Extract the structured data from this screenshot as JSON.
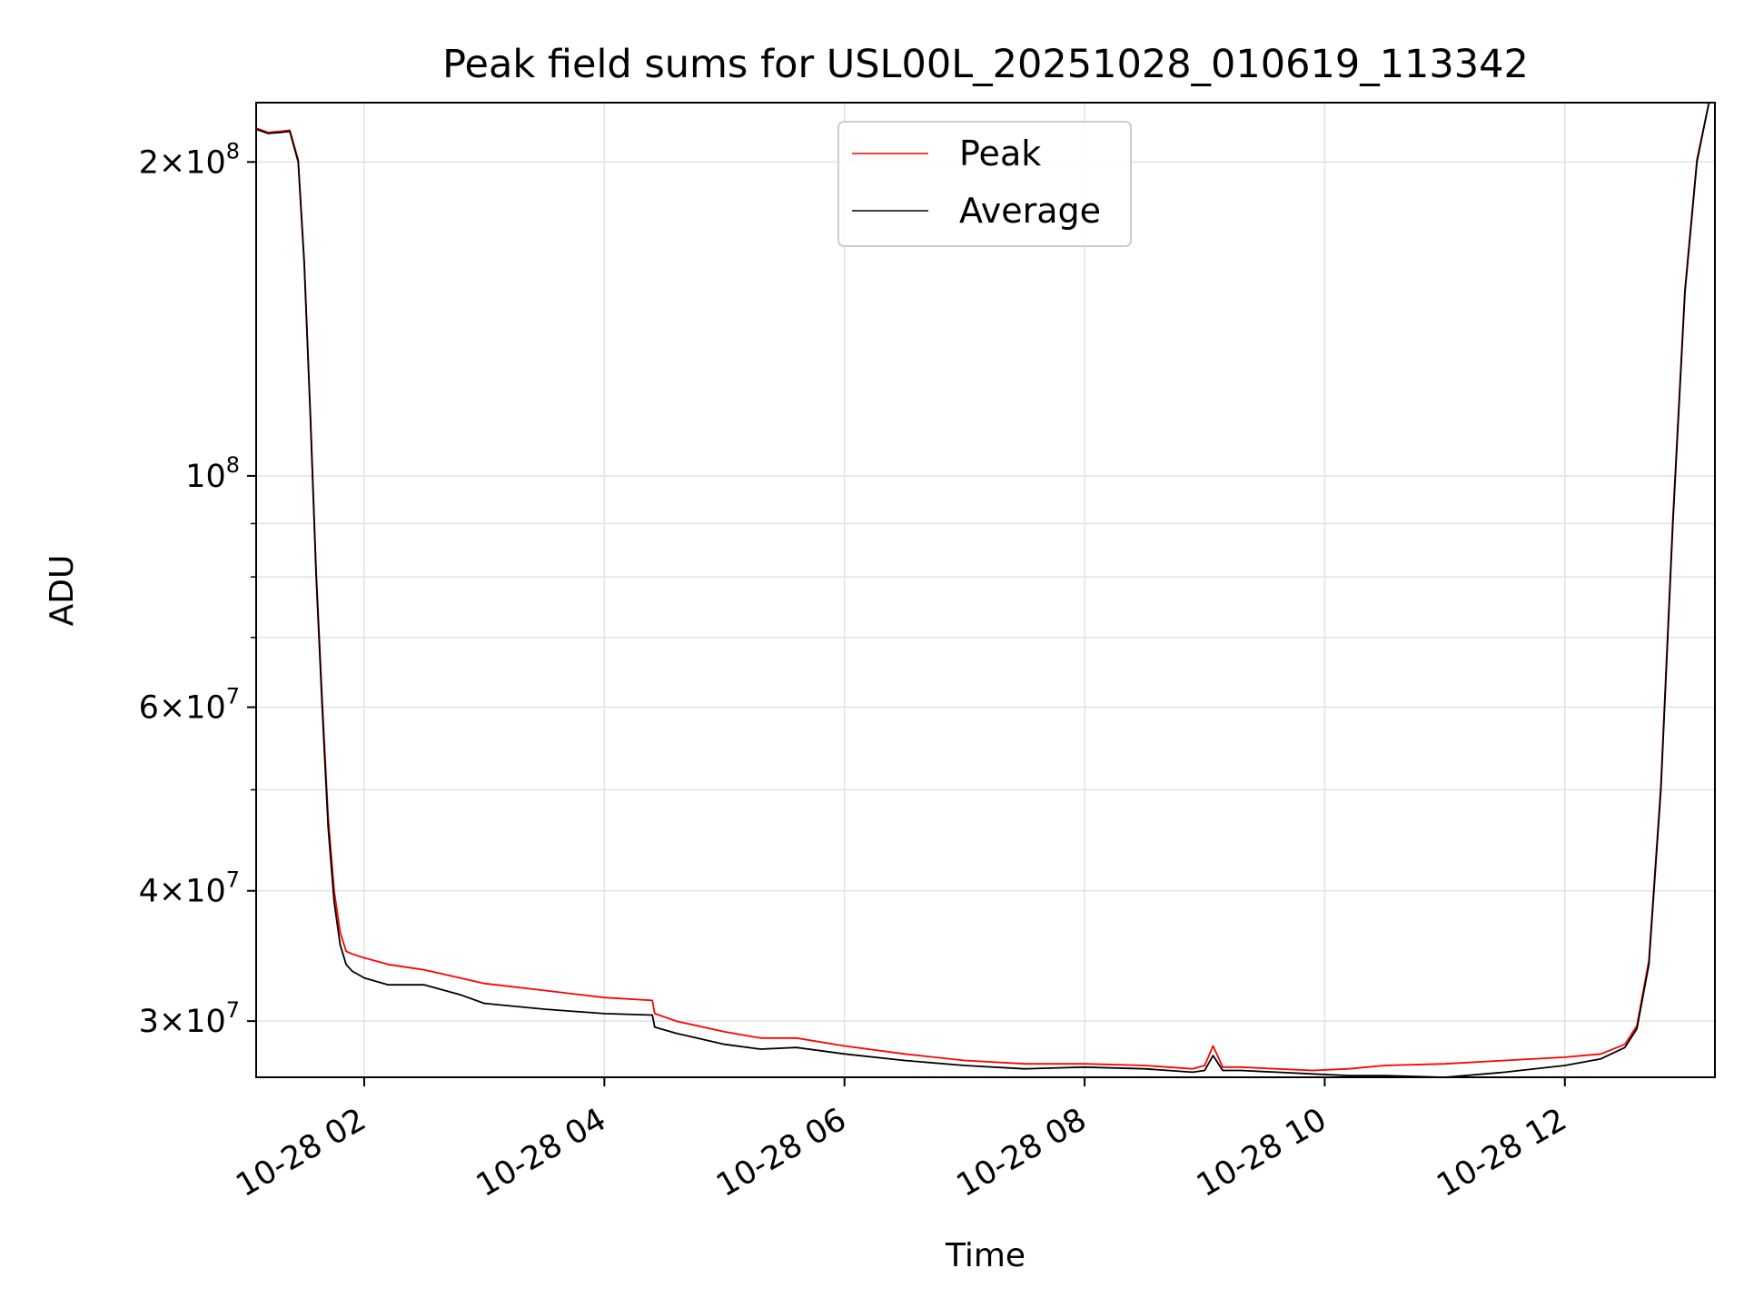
{
  "chart_data": {
    "type": "line",
    "title": "Peak field sums for USL00L_20251028_010619_113342",
    "xlabel": "Time",
    "ylabel": "ADU",
    "yscale": "log",
    "xlim": [
      1.1,
      13.25
    ],
    "ylim": [
      26500000,
      228000000
    ],
    "grid": true,
    "x_ticks": [
      {
        "value": 2,
        "label": "10-28 02"
      },
      {
        "value": 4,
        "label": "10-28 04"
      },
      {
        "value": 6,
        "label": "10-28 06"
      },
      {
        "value": 8,
        "label": "10-28 08"
      },
      {
        "value": 10,
        "label": "10-28 10"
      },
      {
        "value": 12,
        "label": "10-28 12"
      }
    ],
    "y_major_ticks": [
      {
        "value": 200000000,
        "mantissa": "2",
        "exponent": "8"
      },
      {
        "value": 100000000,
        "mantissa": "",
        "exponent": "8"
      },
      {
        "value": 60000000,
        "mantissa": "6",
        "exponent": "7"
      },
      {
        "value": 40000000,
        "mantissa": "4",
        "exponent": "7"
      },
      {
        "value": 30000000,
        "mantissa": "3",
        "exponent": "7"
      }
    ],
    "y_minor_ticks": [
      90000000,
      80000000,
      70000000,
      50000000
    ],
    "legend": {
      "position": "upper center",
      "entries": [
        {
          "label": "Peak",
          "color": "#ff0000"
        },
        {
          "label": "Average",
          "color": "#000000"
        }
      ]
    },
    "series": [
      {
        "name": "Average",
        "color": "#000000",
        "x": [
          1.1,
          1.2,
          1.3,
          1.38,
          1.45,
          1.5,
          1.55,
          1.6,
          1.65,
          1.7,
          1.75,
          1.8,
          1.85,
          1.9,
          2.0,
          2.2,
          2.5,
          2.8,
          3.0,
          3.5,
          4.0,
          4.4,
          4.42,
          4.6,
          5.0,
          5.3,
          5.6,
          6.0,
          6.5,
          7.0,
          7.5,
          8.0,
          8.5,
          8.9,
          9.0,
          9.07,
          9.15,
          9.3,
          9.6,
          9.9,
          10.2,
          10.5,
          11.0,
          11.5,
          12.0,
          12.3,
          12.5,
          12.6,
          12.7,
          12.8,
          12.9,
          13.0,
          13.1,
          13.2,
          13.25
        ],
        "y": [
          215000000,
          213000000,
          213500000,
          214000000,
          200000000,
          160000000,
          115000000,
          80000000,
          60000000,
          46000000,
          39000000,
          35500000,
          34000000,
          33500000,
          33000000,
          32500000,
          32500000,
          31800000,
          31200000,
          30800000,
          30500000,
          30400000,
          29600000,
          29200000,
          28500000,
          28200000,
          28300000,
          27900000,
          27500000,
          27200000,
          27000000,
          27100000,
          27000000,
          26800000,
          26900000,
          27800000,
          26900000,
          26900000,
          26800000,
          26700000,
          26600000,
          26600000,
          26500000,
          26800000,
          27200000,
          27600000,
          28300000,
          29500000,
          34000000,
          50000000,
          90000000,
          150000000,
          200000000,
          228000000,
          228000000
        ]
      },
      {
        "name": "Peak",
        "color": "#ff0000",
        "x": [
          1.1,
          1.2,
          1.3,
          1.38,
          1.45,
          1.5,
          1.55,
          1.6,
          1.65,
          1.7,
          1.75,
          1.8,
          1.85,
          1.9,
          2.0,
          2.2,
          2.5,
          2.8,
          3.0,
          3.5,
          4.0,
          4.4,
          4.42,
          4.6,
          5.0,
          5.3,
          5.6,
          6.0,
          6.5,
          7.0,
          7.5,
          8.0,
          8.5,
          8.9,
          9.0,
          9.07,
          9.15,
          9.3,
          9.6,
          9.9,
          10.2,
          10.5,
          11.0,
          11.5,
          12.0,
          12.3,
          12.5,
          12.6,
          12.7,
          12.8,
          12.9,
          13.0,
          13.1,
          13.2,
          13.25
        ],
        "y": [
          215500000,
          213500000,
          214000000,
          214500000,
          201000000,
          161000000,
          116000000,
          81000000,
          61000000,
          47000000,
          40000000,
          36500000,
          35000000,
          34800000,
          34500000,
          34000000,
          33600000,
          33000000,
          32600000,
          32100000,
          31600000,
          31400000,
          30500000,
          30000000,
          29300000,
          28900000,
          28900000,
          28400000,
          27900000,
          27500000,
          27300000,
          27300000,
          27200000,
          27000000,
          27200000,
          28400000,
          27100000,
          27100000,
          27000000,
          26900000,
          27000000,
          27200000,
          27300000,
          27500000,
          27700000,
          27900000,
          28500000,
          29700000,
          34300000,
          50500000,
          91000000,
          151000000,
          201000000,
          228000000,
          228000000
        ]
      }
    ]
  }
}
